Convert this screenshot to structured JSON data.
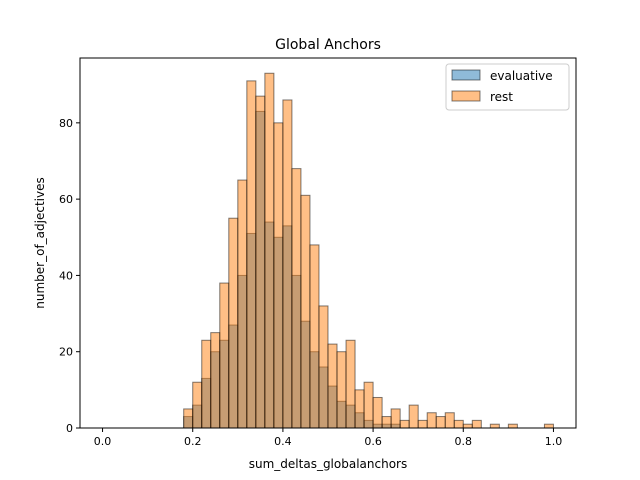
{
  "chart_data": {
    "type": "histogram",
    "title": "Global Anchors",
    "xlabel": "sum_deltas_globalanchors",
    "ylabel": "number_of_adjectives",
    "xlim": [
      -0.05,
      1.05
    ],
    "ylim": [
      0,
      97
    ],
    "xticks": [
      0.0,
      0.2,
      0.4,
      0.6,
      0.8,
      1.0
    ],
    "xtick_labels": [
      "0.0",
      "0.2",
      "0.4",
      "0.6",
      "0.8",
      "1.0"
    ],
    "yticks": [
      0,
      20,
      40,
      60,
      80
    ],
    "ytick_labels": [
      "0",
      "20",
      "40",
      "60",
      "80"
    ],
    "bin_start": 0.0,
    "bin_width": 0.02,
    "legend_position": "upper right",
    "series": [
      {
        "name": "evaluative",
        "color": "#1f77b4",
        "values": [
          0,
          0,
          0,
          0,
          0,
          0,
          0,
          0,
          0,
          3,
          6,
          13,
          20,
          23,
          27,
          40,
          51,
          83,
          54,
          50,
          53,
          40,
          28,
          20,
          16,
          11,
          7,
          6,
          4,
          2,
          1,
          1,
          1,
          0,
          0,
          0,
          0,
          0,
          0,
          0,
          0,
          0,
          0,
          0,
          0,
          0,
          0,
          0,
          0,
          0
        ]
      },
      {
        "name": "rest",
        "color": "#ff7f0e",
        "values": [
          0,
          0,
          0,
          0,
          0,
          0,
          0,
          0,
          0,
          5,
          12,
          23,
          25,
          38,
          55,
          65,
          91,
          87,
          93,
          80,
          86,
          68,
          61,
          48,
          32,
          22,
          20,
          23,
          10,
          12,
          8,
          3,
          5,
          2,
          6,
          2,
          4,
          3,
          4,
          2,
          1,
          2,
          0,
          1,
          0,
          1,
          0,
          0,
          0,
          1
        ]
      }
    ]
  }
}
